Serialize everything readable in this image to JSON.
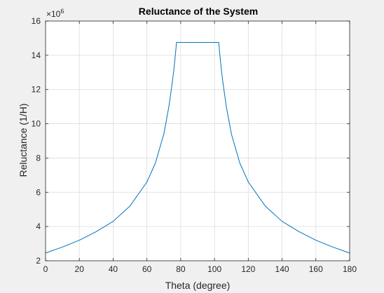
{
  "figure": {
    "background": "#f0f0f0",
    "axes_background": "#ffffff",
    "grid_color": "#dcdcdc",
    "axis_color": "#262626",
    "line_color": "#0072bd"
  },
  "chart_data": {
    "type": "line",
    "title": "Reluctance of the System",
    "xlabel": "Theta (degree)",
    "ylabel": "Reluctance (1/H)",
    "exponent_label": {
      "base": "×10",
      "power": "6"
    },
    "xlim": [
      0,
      180
    ],
    "ylim": [
      2,
      16
    ],
    "xticks": [
      0,
      20,
      40,
      60,
      80,
      100,
      120,
      140,
      160,
      180
    ],
    "yticks": [
      2,
      4,
      6,
      8,
      10,
      12,
      14,
      16
    ],
    "grid": true,
    "series": [
      {
        "color": "#0072bd",
        "x": [
          0,
          10,
          20,
          30,
          40,
          50,
          60,
          65,
          70,
          73,
          75,
          76,
          77,
          77.5,
          102.5,
          103,
          104,
          105,
          107,
          110,
          115,
          120,
          130,
          140,
          150,
          160,
          170,
          180
        ],
        "y": [
          2.45,
          2.8,
          3.2,
          3.7,
          4.3,
          5.2,
          6.6,
          7.7,
          9.4,
          11.0,
          12.4,
          13.2,
          14.2,
          14.75,
          14.75,
          14.2,
          13.2,
          12.4,
          11.0,
          9.4,
          7.7,
          6.6,
          5.2,
          4.3,
          3.7,
          3.2,
          2.8,
          2.45
        ]
      }
    ]
  }
}
